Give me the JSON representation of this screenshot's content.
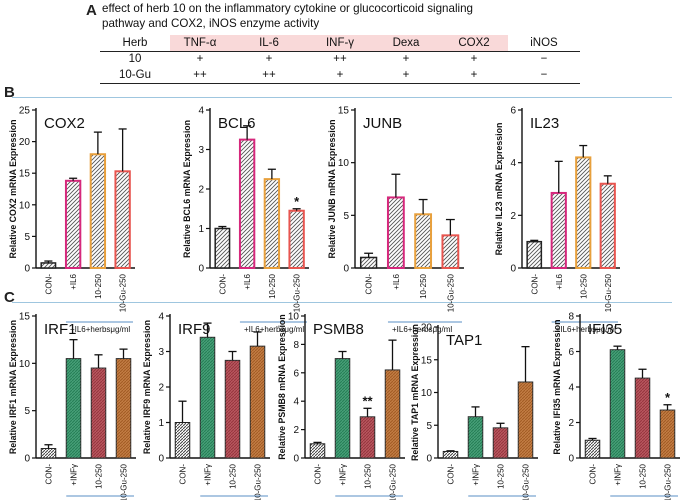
{
  "panel_a": {
    "label": "A",
    "caption_line1": "effect of herb 10 on the inflammatory cytokine or glucocorticoid signaling",
    "caption_line2": "pathway and COX2, iNOS enzyme activity",
    "header": [
      "Herb",
      "TNF-α",
      "IL-6",
      "INF-γ",
      "Dexa",
      "COX2",
      "iNOS"
    ],
    "rows": [
      [
        "10",
        "+",
        "+",
        "++",
        "+",
        "+",
        "−"
      ],
      [
        "10-Gu",
        "++",
        "++",
        "+",
        "+",
        "+",
        "−"
      ]
    ]
  },
  "panel_b": {
    "label": "B",
    "group_label": "+IL6+herbsμg/ml"
  },
  "panel_c": {
    "label": "C",
    "group_label": "+INFy+herbs (μg/ml)"
  },
  "colors": {
    "control_edge": "#222222",
    "b_il6_edge": "#d6287c",
    "b_herb_edge": "#e8a03c",
    "b_gu_edge": "#e8554f",
    "c_control_fill": "#d9d9d9",
    "c_infy_fill": "#1f8a5a",
    "c_herb_fill": "#a8323c",
    "c_gu_fill": "#b5601c",
    "separator": "#9fc6df"
  },
  "chart_data": [
    {
      "type": "bar",
      "panel": "B",
      "title": "COX2",
      "ylabel": "Relative COX2 mRNA Expression",
      "categories": [
        "CON-",
        "+IL6",
        "10-250",
        "10-Gu-250"
      ],
      "values": [
        0.8,
        13.8,
        18.0,
        15.3
      ],
      "errors": [
        0.3,
        0.4,
        3.5,
        6.7
      ],
      "ylim": [
        0,
        25
      ],
      "yticks": [
        0,
        5,
        10,
        15,
        20,
        25
      ],
      "sig": [
        "",
        "",
        "",
        ""
      ],
      "group_label": "+IL6+herbsμg/ml"
    },
    {
      "type": "bar",
      "panel": "B",
      "title": "BCL6",
      "ylabel": "Relative BCL6 mRNA Expression",
      "categories": [
        "CON-",
        "+IL6",
        "10-250",
        "10-Gu-250"
      ],
      "values": [
        1.0,
        3.25,
        2.25,
        1.45
      ],
      "errors": [
        0.05,
        0.35,
        0.25,
        0.05
      ],
      "ylim": [
        0,
        4
      ],
      "yticks": [
        0,
        1,
        2,
        3,
        4
      ],
      "sig": [
        "",
        "",
        "",
        "*"
      ],
      "group_label": "+IL6+herbsμg/ml"
    },
    {
      "type": "bar",
      "panel": "B",
      "title": "JUNB",
      "ylabel": "Relative JUNB mRNA Expression",
      "categories": [
        "CON-",
        "+IL6",
        "10-250",
        "10-Gu-250"
      ],
      "values": [
        1.0,
        6.7,
        5.1,
        3.1
      ],
      "errors": [
        0.4,
        2.2,
        1.4,
        1.5
      ],
      "ylim": [
        0,
        15
      ],
      "yticks": [
        0,
        5,
        10,
        15
      ],
      "sig": [
        "",
        "",
        "",
        ""
      ],
      "group_label": "+IL6+herbsμg/ml"
    },
    {
      "type": "bar",
      "panel": "B",
      "title": "IL23",
      "ylabel": "Relative IL23 mRNA Expression",
      "categories": [
        "CON-",
        "+IL6",
        "10-250",
        "10-Gu-250"
      ],
      "values": [
        1.0,
        2.85,
        4.2,
        3.2
      ],
      "errors": [
        0.05,
        1.2,
        0.45,
        0.3
      ],
      "ylim": [
        0,
        6
      ],
      "yticks": [
        0,
        2,
        4,
        6
      ],
      "sig": [
        "",
        "",
        "",
        ""
      ],
      "group_label": "+IL6+herbsμg/ml"
    },
    {
      "type": "bar",
      "panel": "C",
      "title": "IRF1",
      "ylabel": "Relative IRF1 mRNA Expression",
      "categories": [
        "CON-",
        "+INFγ",
        "10-250",
        "10-Gu-250"
      ],
      "values": [
        1.0,
        10.5,
        9.5,
        10.5
      ],
      "errors": [
        0.4,
        2.0,
        1.4,
        1.0
      ],
      "ylim": [
        0,
        15
      ],
      "yticks": [
        0,
        5,
        10,
        15
      ],
      "sig": [
        "",
        "",
        "",
        ""
      ],
      "group_label": "+INFy+herbs (μg/ml)"
    },
    {
      "type": "bar",
      "panel": "C",
      "title": "IRF9",
      "ylabel": "Relative IRF9 mRNA Expression",
      "categories": [
        "CON-",
        "+INFγ",
        "10-250",
        "10-Gu-250"
      ],
      "values": [
        1.0,
        3.4,
        2.75,
        3.15
      ],
      "errors": [
        0.6,
        0.4,
        0.25,
        0.4
      ],
      "ylim": [
        0,
        4
      ],
      "yticks": [
        0,
        1,
        2,
        3,
        4
      ],
      "sig": [
        "",
        "",
        "",
        ""
      ],
      "group_label": "+INFy+herbs (μg/ml)"
    },
    {
      "type": "bar",
      "panel": "C",
      "title": "PSMB8",
      "ylabel": "Relative PSMB8 mRNA Expression",
      "categories": [
        "CON-",
        "+INFγ",
        "10-250",
        "10-Gu-250"
      ],
      "values": [
        1.0,
        7.0,
        2.9,
        6.2
      ],
      "errors": [
        0.1,
        0.5,
        0.6,
        2.1
      ],
      "ylim": [
        0,
        10
      ],
      "yticks": [
        0,
        2,
        4,
        6,
        8,
        10
      ],
      "sig": [
        "",
        "",
        "**",
        ""
      ],
      "group_label": "+INFy+herbs (μg/ml)"
    },
    {
      "type": "bar",
      "panel": "C",
      "title": "TAP1",
      "ylabel": "Relative TAP1 mRNA Expression",
      "categories": [
        "CON-",
        "+INFγ",
        "10-250",
        "10-Gu-250"
      ],
      "values": [
        1.0,
        6.3,
        4.6,
        11.6
      ],
      "errors": [
        0.1,
        1.5,
        0.7,
        5.4
      ],
      "ylim": [
        0,
        20
      ],
      "yticks": [
        0,
        5,
        10,
        15,
        20
      ],
      "sig": [
        "",
        "",
        "",
        ""
      ],
      "group_label": "+INFy+herbs (μg/ml)"
    },
    {
      "type": "bar",
      "panel": "C",
      "title": "IFI35",
      "ylabel": "Relative IFI35 mRNA Expression",
      "categories": [
        "CON-",
        "+INFγ",
        "10-250",
        "10-Gu-250"
      ],
      "values": [
        1.0,
        6.1,
        4.5,
        2.7
      ],
      "errors": [
        0.1,
        0.2,
        0.5,
        0.3
      ],
      "ylim": [
        0,
        8
      ],
      "yticks": [
        0,
        2,
        4,
        6,
        8
      ],
      "sig": [
        "",
        "",
        "",
        "*"
      ],
      "group_label": "+INFy+herbs (μg/ml)"
    }
  ]
}
